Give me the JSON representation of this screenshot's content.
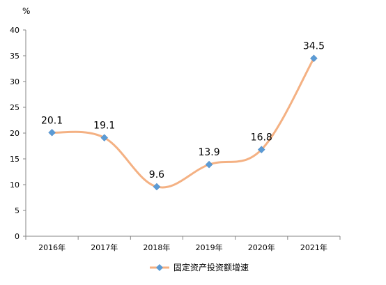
{
  "chart_data": {
    "type": "line",
    "title": "",
    "xlabel": "",
    "ylabel": "%",
    "ylim": [
      0,
      40
    ],
    "yticks": [
      0,
      5,
      10,
      15,
      20,
      25,
      30,
      35,
      40
    ],
    "categories": [
      "2016年",
      "2017年",
      "2018年",
      "2019年",
      "2020年",
      "2021年"
    ],
    "series": [
      {
        "name": "固定资产投资额增速",
        "values": [
          20.1,
          19.1,
          9.6,
          13.9,
          16.8,
          34.5
        ],
        "labels": [
          "20.1",
          "19.1",
          "9.6",
          "13.9",
          "16.8",
          "34.5"
        ],
        "line_color": "#F4B183",
        "marker_color": "#5B9BD5",
        "marker": "diamond",
        "smooth": true
      }
    ],
    "grid": false,
    "legend_position": "bottom"
  }
}
